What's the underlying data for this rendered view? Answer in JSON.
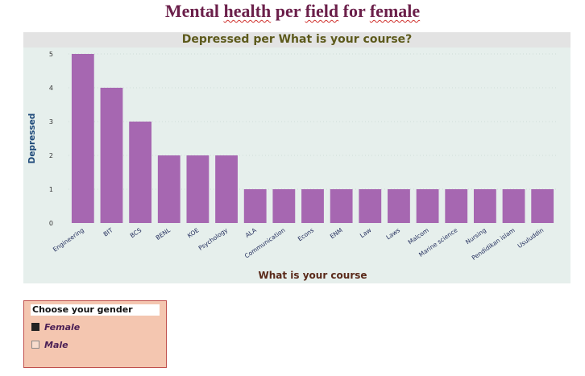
{
  "title": {
    "parts": [
      "Mental ",
      "health",
      " per ",
      "field",
      " for ",
      "female"
    ]
  },
  "chart_panel": {
    "header": "Depressed per What is your course?"
  },
  "chart_data": {
    "type": "bar",
    "title": "Depressed per What is your course?",
    "xlabel": "What is your course",
    "ylabel": "Depressed",
    "categories": [
      "Engineering",
      "BIT",
      "BCS",
      "BENL",
      "KOE",
      "Psychology",
      "ALA",
      "Communication",
      "Econs",
      "ENM",
      "Law",
      "Laws",
      "Malcom",
      "Marine science",
      "Nursing",
      "Pendidikan islam",
      "Usuluddin"
    ],
    "values": [
      5,
      4,
      3,
      2,
      2,
      2,
      1,
      1,
      1,
      1,
      1,
      1,
      1,
      1,
      1,
      1,
      1
    ],
    "yticks": [
      "0",
      "1",
      "2",
      "3",
      "4",
      "5"
    ],
    "ylim": [
      0,
      5
    ],
    "grid": true,
    "bar_color": "#a667b1"
  },
  "slicer": {
    "header": "Choose your gender",
    "items": [
      {
        "label": "Female",
        "checked": true
      },
      {
        "label": "Male",
        "checked": false
      }
    ]
  }
}
